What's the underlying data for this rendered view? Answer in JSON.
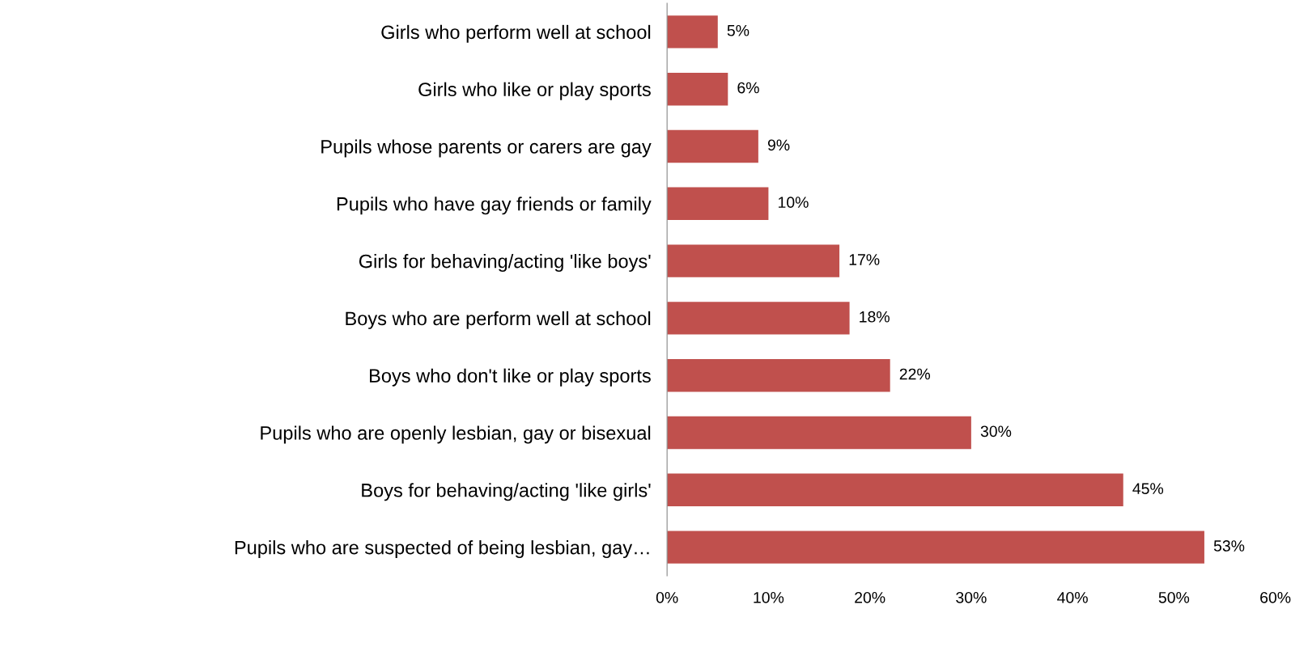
{
  "chart_data": {
    "type": "bar",
    "orientation": "horizontal",
    "categories": [
      "Girls who perform well at school",
      "Girls who like or play sports",
      "Pupils whose parents or carers are gay",
      "Pupils who have gay friends or family",
      "Girls for behaving/acting 'like boys'",
      "Boys who are perform well at school",
      "Boys who don't like or play sports",
      "Pupils who are openly lesbian, gay or bisexual",
      "Boys for behaving/acting 'like girls'",
      "Pupils who are suspected of being lesbian, gay…"
    ],
    "values": [
      5,
      6,
      9,
      10,
      17,
      18,
      22,
      30,
      45,
      53
    ],
    "value_labels": [
      "5%",
      "6%",
      "9%",
      "10%",
      "17%",
      "18%",
      "22%",
      "30%",
      "45%",
      "53%"
    ],
    "color": "#c0504d",
    "xlim": [
      0,
      60
    ],
    "xticks": [
      {
        "value": 0,
        "label": "0%"
      },
      {
        "value": 10,
        "label": "10%"
      },
      {
        "value": 20,
        "label": "20%"
      },
      {
        "value": 30,
        "label": "30%"
      },
      {
        "value": 40,
        "label": "40%"
      },
      {
        "value": 50,
        "label": "50%"
      },
      {
        "value": 60,
        "label": "60%"
      }
    ],
    "grid": false,
    "legend": false
  }
}
